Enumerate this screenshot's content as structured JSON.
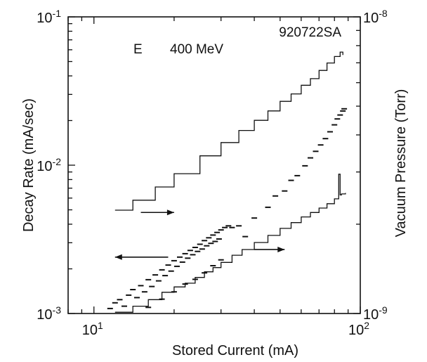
{
  "chart_data": {
    "type": "scatter",
    "title": "",
    "run_label": "920722SA",
    "energy": {
      "prefix": "E",
      "value": "400 MeV"
    },
    "xlabel": "Stored Current (mA)",
    "ylabel_left": "Decay Rate (mA/sec)",
    "ylabel_right": "Vacuum Pressure (Torr)",
    "x_scale": "log",
    "y_left_scale": "log",
    "y_right_scale": "log",
    "xlim": [
      8,
      100
    ],
    "ylim_left": [
      0.001,
      0.1
    ],
    "ylim_right": [
      1e-09,
      1e-08
    ],
    "x_ticks": [
      {
        "value": 10,
        "base": "10",
        "exp": "1"
      },
      {
        "value": 100,
        "base": "10",
        "exp": "2"
      }
    ],
    "y_left_ticks": [
      {
        "value": 0.001,
        "base": "10",
        "exp": "-3"
      },
      {
        "value": 0.01,
        "base": "10",
        "exp": "-2"
      },
      {
        "value": 0.1,
        "base": "10",
        "exp": "-1"
      }
    ],
    "y_right_ticks": [
      {
        "value": 1e-09,
        "base": "10",
        "exp": "-9"
      },
      {
        "value": 1e-08,
        "base": "10",
        "exp": "-8"
      }
    ],
    "grid": false,
    "series": [
      {
        "axis": "right",
        "style": "step-line",
        "points": [
          [
            12,
            2.23e-09
          ],
          [
            14,
            2.41e-09
          ],
          [
            17,
            2.67e-09
          ],
          [
            20,
            2.96e-09
          ],
          [
            25,
            3.4e-09
          ],
          [
            30,
            3.77e-09
          ],
          [
            35,
            4.14e-09
          ],
          [
            40,
            4.48e-09
          ],
          [
            45,
            4.82e-09
          ],
          [
            50,
            5.19e-09
          ],
          [
            55,
            5.5e-09
          ],
          [
            60,
            5.88e-09
          ],
          [
            65,
            6.19e-09
          ],
          [
            70,
            6.6e-09
          ],
          [
            75,
            6.99e-09
          ],
          [
            80,
            7.35e-09
          ],
          [
            84,
            7.61e-09
          ],
          [
            86,
            7.44e-09
          ]
        ]
      },
      {
        "axis": "left",
        "style": "step-line",
        "points": [
          [
            12,
            0.00102
          ],
          [
            14,
            0.00112
          ],
          [
            16,
            0.00124
          ],
          [
            18,
            0.00139
          ],
          [
            20,
            0.00151
          ],
          [
            22,
            0.0016
          ],
          [
            24,
            0.00175
          ],
          [
            26,
            0.00191
          ],
          [
            28,
            0.00204
          ],
          [
            30,
            0.00221
          ],
          [
            33,
            0.00247
          ],
          [
            36,
            0.0027
          ],
          [
            40,
            0.00301
          ],
          [
            45,
            0.00336
          ],
          [
            50,
            0.00375
          ],
          [
            55,
            0.0041
          ],
          [
            60,
            0.00448
          ],
          [
            65,
            0.0048
          ],
          [
            70,
            0.00514
          ],
          [
            75,
            0.0055
          ],
          [
            80,
            0.00593
          ],
          [
            83,
            0.00611
          ],
          [
            83,
            0.0087
          ],
          [
            84,
            0.0063
          ],
          [
            85,
            0.0064
          ],
          [
            88,
            0.0065
          ]
        ]
      },
      {
        "axis": "left",
        "style": "scatter",
        "points": [
          [
            11.5,
            0.00108
          ],
          [
            12,
            0.00118
          ],
          [
            12.5,
            0.00124
          ],
          [
            13,
            0.00112
          ],
          [
            13.5,
            0.00133
          ],
          [
            14,
            0.00145
          ],
          [
            14.5,
            0.00128
          ],
          [
            15,
            0.00154
          ],
          [
            15.5,
            0.0014
          ],
          [
            16,
            0.00169
          ],
          [
            16.5,
            0.00152
          ],
          [
            17,
            0.00182
          ],
          [
            17.5,
            0.00166
          ],
          [
            18,
            0.00197
          ],
          [
            18.5,
            0.0018
          ],
          [
            19,
            0.00212
          ],
          [
            19.5,
            0.00193
          ],
          [
            20,
            0.00227
          ],
          [
            20.5,
            0.00208
          ],
          [
            21,
            0.0024
          ],
          [
            21.5,
            0.00222
          ],
          [
            22,
            0.00253
          ],
          [
            22.5,
            0.00236
          ],
          [
            23,
            0.00266
          ],
          [
            23.5,
            0.00249
          ],
          [
            24,
            0.00279
          ],
          [
            24.5,
            0.00262
          ],
          [
            25,
            0.00293
          ],
          [
            25.5,
            0.00272
          ],
          [
            26,
            0.0031
          ],
          [
            26.5,
            0.00286
          ],
          [
            27,
            0.00324
          ],
          [
            27.5,
            0.00297
          ],
          [
            28,
            0.00338
          ],
          [
            28.5,
            0.00306
          ],
          [
            29,
            0.00352
          ],
          [
            29.5,
            0.00318
          ],
          [
            30,
            0.00366
          ],
          [
            31,
            0.0038
          ],
          [
            32,
            0.0039
          ],
          [
            33,
            0.0038
          ],
          [
            35,
            0.0039
          ],
          [
            37,
            0.0033
          ],
          [
            40,
            0.0044
          ],
          [
            45,
            0.0052
          ],
          [
            48,
            0.0062
          ],
          [
            52,
            0.0067
          ],
          [
            55,
            0.0079
          ],
          [
            58,
            0.0085
          ],
          [
            62,
            0.0099
          ],
          [
            65,
            0.0112
          ],
          [
            68,
            0.0124
          ],
          [
            71,
            0.0137
          ],
          [
            74,
            0.0151
          ],
          [
            77,
            0.0168
          ],
          [
            80,
            0.0187
          ],
          [
            82,
            0.0205
          ],
          [
            84,
            0.0218
          ],
          [
            86,
            0.0232
          ],
          [
            87,
            0.024
          ],
          [
            16,
            0.0011
          ],
          [
            18,
            0.00125
          ],
          [
            20,
            0.0014
          ],
          [
            22,
            0.00158
          ],
          [
            24,
            0.0017
          ],
          [
            26,
            0.00188
          ],
          [
            28,
            0.0021
          ],
          [
            30,
            0.0023
          ]
        ]
      }
    ],
    "arrows": [
      {
        "from": [
          15,
          0.0048
        ],
        "to": [
          20,
          0.0048
        ],
        "points_to": "right"
      },
      {
        "from": [
          19,
          0.0024
        ],
        "to": [
          12,
          0.0024
        ],
        "points_to": "left"
      },
      {
        "from": [
          40,
          0.0027
        ],
        "to": [
          52,
          0.0027
        ],
        "points_to": "right"
      }
    ]
  }
}
